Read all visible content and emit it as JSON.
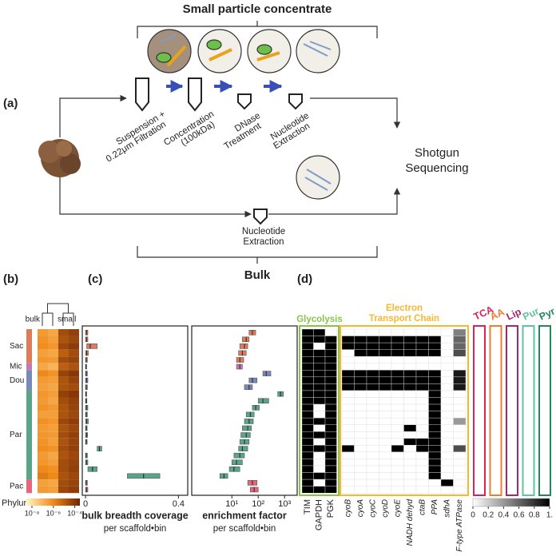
{
  "panel_a": {
    "label": "(a)",
    "top_bracket": "Small particle concentrate",
    "steps": [
      [
        "Suspension +",
        "0.22μm Filtration"
      ],
      [
        "Concentration",
        "(100kDa)"
      ],
      [
        "DNase",
        "Treatment"
      ],
      [
        "Nucleotide",
        "Extraction"
      ]
    ],
    "bulk_step": [
      "Nucleotide",
      "Extraction"
    ],
    "bottom_bracket": "Bulk",
    "output": [
      "Shotgun",
      "Sequencing"
    ]
  },
  "panel_b": {
    "label": "(b)",
    "groups": [
      "bulk",
      "small"
    ],
    "phylum_label": "Phylum",
    "colorbar": {
      "lim": [
        3e-09,
        0.0003
      ],
      "ticks": [
        {
          "value": 1e-08,
          "label": "10⁻⁸"
        },
        {
          "value": 1e-06,
          "label": "10⁻⁶"
        },
        {
          "value": 0.0001,
          "label": "10⁻⁴"
        }
      ]
    }
  },
  "panel_c": {
    "label": "(c)",
    "coverage_axis": {
      "title": "bulk breadth coverage",
      "subtitle": "per scaffold•bin",
      "xlim": [
        -0.014,
        0.44
      ],
      "xticks": [
        0,
        0.4
      ]
    },
    "enrichment_axis": {
      "title": "enrichment factor",
      "subtitle": "per scaffold•bin",
      "log": true,
      "xlim": [
        0.3,
        3000
      ],
      "xticks": [
        {
          "value": 10,
          "label": "10¹"
        },
        {
          "value": 100,
          "label": "10²"
        },
        {
          "value": 1000,
          "label": "10³"
        }
      ]
    }
  },
  "panel_d": {
    "label": "(d)",
    "glycolysis": {
      "title": "Glycolysis",
      "genes": [
        "TIM",
        "GAPDH",
        "PGK"
      ]
    },
    "etc": {
      "title": [
        "Electron",
        "Transport Chain"
      ],
      "genes": [
        "cyoB",
        "cyoA",
        "cyoC",
        "cyoD",
        "cyoE",
        "NADH dehyd",
        "ctaB",
        "PPA",
        "sdhA",
        "F-type ATPase"
      ]
    },
    "other_pathways": [
      {
        "name": "TCA",
        "color": "#d6245c"
      },
      {
        "name": "AA",
        "color": "#ef7d32"
      },
      {
        "name": "Lip",
        "color": "#a3286e"
      },
      {
        "name": "Pur",
        "color": "#5ec4a0"
      },
      {
        "name": "Pyr",
        "color": "#23875c"
      }
    ],
    "colorbar": {
      "lim": [
        0,
        1
      ],
      "ticks": [
        0,
        0.2,
        0.4,
        0.6,
        0.8,
        {
          "value": 1,
          "label": "1."
        }
      ]
    }
  },
  "phyla": [
    {
      "name": "Sac",
      "color": "#de7b5b",
      "rows": [
        {
          "abundance": [
            4e-07,
            2e-07,
            3e-05,
            6e-05
          ],
          "coverage": [
            0,
            0.004,
            0.01
          ],
          "enrichment": [
            45,
            60,
            80
          ],
          "genes": [
            1,
            1,
            0,
            0,
            0,
            0,
            0,
            0,
            0,
            0,
            0,
            0,
            0.5
          ]
        },
        {
          "abundance": [
            6e-07,
            3e-07,
            2e-05,
            4e-05
          ],
          "coverage": [
            0,
            0.004,
            0.01
          ],
          "enrichment": [
            25,
            35,
            45
          ],
          "genes": [
            1,
            1,
            1,
            1,
            1,
            1,
            1,
            1,
            1,
            1,
            1,
            0,
            0.6
          ]
        },
        {
          "abundance": [
            8e-07,
            5e-07,
            4e-05,
            8e-05
          ],
          "coverage": [
            0.005,
            0.02,
            0.05
          ],
          "enrichment": [
            20,
            30,
            40
          ],
          "genes": [
            1,
            0,
            1,
            1,
            1,
            1,
            1,
            1,
            1,
            1,
            1,
            0,
            0.6
          ]
        },
        {
          "abundance": [
            3e-07,
            2e-07,
            1e-05,
            3e-05
          ],
          "coverage": [
            0,
            0.005,
            0.012
          ],
          "enrichment": [
            18,
            25,
            35
          ],
          "genes": [
            1,
            1,
            1,
            0,
            1,
            1,
            1,
            1,
            1,
            1,
            1,
            0,
            0.7
          ]
        },
        {
          "abundance": [
            5e-07,
            4e-07,
            3e-05,
            5e-05
          ],
          "coverage": [
            0,
            0.003,
            0.008
          ],
          "enrichment": [
            15,
            20,
            28
          ],
          "genes": [
            1,
            1,
            1,
            0,
            0,
            0,
            0,
            0,
            0,
            0,
            0,
            0,
            0
          ]
        }
      ]
    },
    {
      "name": "Mic",
      "color": "#c777b5",
      "rows": [
        {
          "abundance": [
            2e-07,
            1e-07,
            1e-05,
            2e-05
          ],
          "coverage": [
            0,
            0.002,
            0.005
          ],
          "enrichment": [
            15,
            20,
            25
          ],
          "genes": [
            1,
            1,
            1,
            0,
            0,
            0,
            0,
            0,
            0,
            0,
            0,
            0,
            0
          ]
        }
      ]
    },
    {
      "name": "Dou",
      "color": "#7a8ab8",
      "rows": [
        {
          "abundance": [
            1e-06,
            6e-07,
            5e-05,
            0.0001
          ],
          "coverage": [
            0,
            0.003,
            0.008
          ],
          "enrichment": [
            150,
            200,
            300
          ],
          "genes": [
            1,
            1,
            1,
            1,
            1,
            1,
            1,
            1,
            1,
            1,
            1,
            0,
            0.9
          ]
        },
        {
          "abundance": [
            4e-07,
            3e-07,
            2e-05,
            5e-05
          ],
          "coverage": [
            0,
            0.004,
            0.01
          ],
          "enrichment": [
            45,
            60,
            90
          ],
          "genes": [
            1,
            1,
            1,
            1,
            1,
            1,
            1,
            1,
            1,
            1,
            1,
            0,
            0.9
          ]
        },
        {
          "abundance": [
            3e-07,
            2e-07,
            2e-05,
            3e-05
          ],
          "coverage": [
            0,
            0.003,
            0.008
          ],
          "enrichment": [
            30,
            45,
            60
          ],
          "genes": [
            1,
            1,
            1,
            1,
            1,
            1,
            1,
            1,
            1,
            1,
            1,
            0,
            0.9
          ]
        }
      ]
    },
    {
      "name": "Par",
      "color": "#5aa58a",
      "rows": [
        {
          "abundance": [
            5e-07,
            3e-07,
            6e-05,
            0.0001
          ],
          "coverage": [
            0,
            0.002,
            0.005
          ],
          "enrichment": [
            550,
            700,
            900
          ],
          "genes": [
            1,
            1,
            1,
            0,
            0,
            0,
            0,
            0,
            0,
            0,
            1,
            0,
            0
          ]
        },
        {
          "abundance": [
            4e-07,
            2e-07,
            3e-05,
            6e-05
          ],
          "coverage": [
            0,
            0.003,
            0.006
          ],
          "enrichment": [
            100,
            150,
            250
          ],
          "genes": [
            1,
            1,
            1,
            0,
            0,
            0,
            0,
            0,
            0,
            0,
            1,
            0,
            0
          ]
        },
        {
          "abundance": [
            6e-07,
            4e-07,
            2e-05,
            5e-05
          ],
          "coverage": [
            0,
            0.004,
            0.01
          ],
          "enrichment": [
            60,
            80,
            110
          ],
          "genes": [
            1,
            0,
            1,
            0,
            0,
            0,
            0,
            0,
            0,
            0,
            1,
            0,
            0
          ]
        },
        {
          "abundance": [
            3e-07,
            3e-07,
            2e-05,
            4e-05
          ],
          "coverage": [
            0,
            0.003,
            0.008
          ],
          "enrichment": [
            35,
            50,
            70
          ],
          "genes": [
            1,
            0,
            1,
            0,
            0,
            0,
            0,
            0,
            0,
            0,
            1,
            0,
            0
          ]
        },
        {
          "abundance": [
            7e-07,
            5e-07,
            4e-05,
            7e-05
          ],
          "coverage": [
            0,
            0.005,
            0.012
          ],
          "enrichment": [
            30,
            45,
            65
          ],
          "genes": [
            1,
            1,
            1,
            0,
            0,
            0,
            0,
            0,
            0,
            0,
            1,
            0,
            0.4
          ]
        },
        {
          "abundance": [
            4e-07,
            3e-07,
            2e-05,
            4e-05
          ],
          "coverage": [
            0,
            0.003,
            0.007
          ],
          "enrichment": [
            25,
            40,
            55
          ],
          "genes": [
            1,
            0,
            1,
            0,
            0,
            0,
            0,
            0,
            1,
            0,
            1,
            0,
            0
          ]
        },
        {
          "abundance": [
            5e-07,
            4e-07,
            3e-05,
            6e-05
          ],
          "coverage": [
            0,
            0.004,
            0.009
          ],
          "enrichment": [
            22,
            35,
            50
          ],
          "genes": [
            1,
            1,
            1,
            0,
            0,
            0,
            0,
            0,
            0,
            0,
            1,
            0,
            0
          ]
        },
        {
          "abundance": [
            6e-07,
            3e-07,
            2e-05,
            5e-05
          ],
          "coverage": [
            0,
            0.003,
            0.007
          ],
          "enrichment": [
            20,
            30,
            45
          ],
          "genes": [
            1,
            0,
            1,
            0,
            0,
            0,
            0,
            0,
            1,
            1,
            1,
            0,
            0
          ]
        },
        {
          "abundance": [
            8e-07,
            6e-07,
            3e-05,
            6e-05
          ],
          "coverage": [
            0.05,
            0.06,
            0.07
          ],
          "enrichment": [
            18,
            25,
            40
          ],
          "genes": [
            1,
            1,
            1,
            1,
            0,
            0,
            0,
            1,
            0,
            1,
            1,
            0,
            0.7
          ]
        },
        {
          "abundance": [
            4e-07,
            2e-07,
            2e-05,
            4e-05
          ],
          "coverage": [
            0,
            0.003,
            0.008
          ],
          "enrichment": [
            12,
            20,
            30
          ],
          "genes": [
            1,
            0,
            1,
            0,
            0,
            0,
            0,
            0,
            0,
            0,
            1,
            0,
            0
          ]
        },
        {
          "abundance": [
            5e-07,
            3e-07,
            3e-05,
            5e-05
          ],
          "coverage": [
            0,
            0.004,
            0.01
          ],
          "enrichment": [
            10,
            15,
            25
          ],
          "genes": [
            1,
            0,
            1,
            0,
            0,
            0,
            0,
            0,
            0,
            0,
            1,
            0,
            0
          ]
        },
        {
          "abundance": [
            1e-06,
            7e-07,
            3e-05,
            6e-05
          ],
          "coverage": [
            0.01,
            0.03,
            0.05
          ],
          "enrichment": [
            8,
            12,
            20
          ],
          "genes": [
            1,
            0,
            1,
            0,
            0,
            0,
            0,
            0,
            0,
            0,
            1,
            0,
            0
          ]
        },
        {
          "abundance": [
            2e-06,
            1e-06,
            2e-05,
            4e-05
          ],
          "coverage": [
            0.18,
            0.25,
            0.32
          ],
          "enrichment": [
            3.5,
            5,
            7
          ],
          "genes": [
            1,
            1,
            1,
            0,
            0,
            0,
            0,
            0,
            0,
            0,
            1,
            0,
            0
          ]
        }
      ]
    },
    {
      "name": "Pac",
      "color": "#e8657a",
      "rows": [
        {
          "abundance": [
            3e-07,
            2e-07,
            3e-05,
            5e-05
          ],
          "coverage": [
            0,
            0.003,
            0.008
          ],
          "enrichment": [
            40,
            60,
            90
          ],
          "genes": [
            1,
            0,
            1,
            0,
            0,
            0,
            0,
            0,
            0,
            0,
            0,
            1,
            0
          ]
        },
        {
          "abundance": [
            4e-07,
            3e-07,
            4e-05,
            7e-05
          ],
          "coverage": [
            0,
            0.004,
            0.01
          ],
          "enrichment": [
            50,
            70,
            100
          ],
          "genes": [
            1,
            1,
            1,
            0,
            0,
            0,
            0,
            0,
            0,
            0,
            0,
            0,
            0
          ]
        }
      ]
    }
  ]
}
